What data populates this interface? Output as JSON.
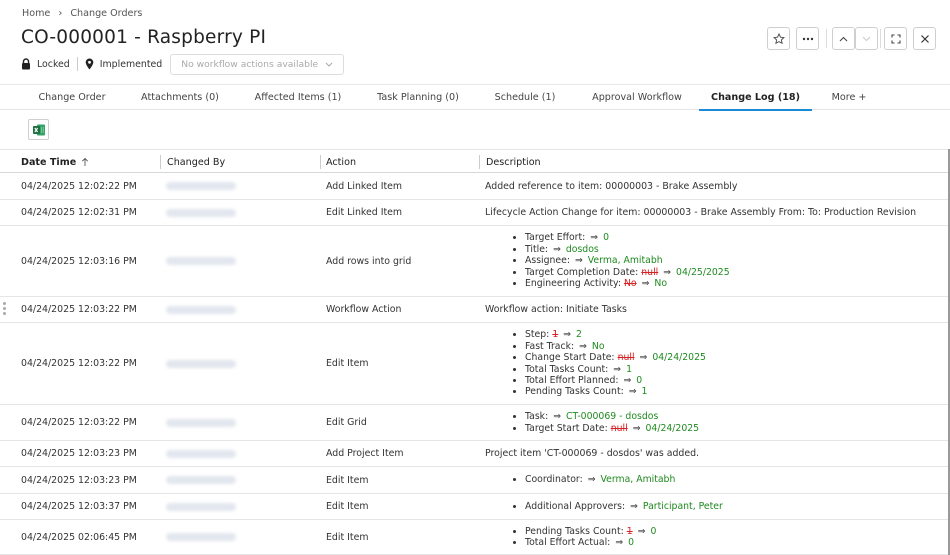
{
  "breadcrumb": {
    "home": "Home",
    "parent": "Change Orders"
  },
  "title": "CO-000001 - Raspberry PI",
  "status": {
    "lock_label": "Locked",
    "state_label": "Implemented",
    "workflow_placeholder": "No workflow actions available"
  },
  "tabs": [
    {
      "label": "Change Order"
    },
    {
      "label": "Attachments (0)"
    },
    {
      "label": "Affected Items (1)"
    },
    {
      "label": "Task Planning (0)"
    },
    {
      "label": "Schedule (1)"
    },
    {
      "label": "Approval Workflow"
    },
    {
      "label": "Change Log (18)"
    },
    {
      "label": "More +"
    }
  ],
  "columns": {
    "date": "Date Time",
    "changed_by": "Changed By",
    "action": "Action",
    "description": "Description"
  },
  "rows": [
    {
      "date": "04/24/2025 12:02:22 PM",
      "action": "Add Linked Item",
      "description": "Added reference to item: 00000003 - Brake Assembly"
    },
    {
      "date": "04/24/2025 12:02:31 PM",
      "action": "Edit Linked Item",
      "description": "Lifecycle Action Change for item: 00000003 - Brake Assembly From: To: Production Revision"
    },
    {
      "date": "04/24/2025 12:03:16 PM",
      "action": "Add rows into grid",
      "changes": [
        {
          "field": "Target Effort:",
          "old": "",
          "new": "0"
        },
        {
          "field": "Title:",
          "old": "",
          "new": "dosdos"
        },
        {
          "field": "Assignee:",
          "old": "",
          "new": "Verma, Amitabh"
        },
        {
          "field": "Target Completion Date:",
          "old": "null",
          "new": "04/25/2025"
        },
        {
          "field": "Engineering Activity:",
          "old": "No",
          "new": "No"
        }
      ]
    },
    {
      "date": "04/24/2025 12:03:22 PM",
      "action": "Workflow Action",
      "description": "Workflow action: Initiate Tasks"
    },
    {
      "date": "04/24/2025 12:03:22 PM",
      "action": "Edit Item",
      "changes": [
        {
          "field": "Step:",
          "old": "1",
          "new": "2"
        },
        {
          "field": "Fast Track:",
          "old": "",
          "new": "No"
        },
        {
          "field": "Change Start Date:",
          "old": "null",
          "new": "04/24/2025"
        },
        {
          "field": "Total Tasks Count:",
          "old": "",
          "new": "1"
        },
        {
          "field": "Total Effort Planned:",
          "old": "",
          "new": "0"
        },
        {
          "field": "Pending Tasks Count:",
          "old": "",
          "new": "1"
        }
      ]
    },
    {
      "date": "04/24/2025 12:03:22 PM",
      "action": "Edit Grid",
      "changes": [
        {
          "field": "Task:",
          "old": "",
          "new": "CT-000069 - dosdos"
        },
        {
          "field": "Target Start Date:",
          "old": "null",
          "new": "04/24/2025"
        }
      ]
    },
    {
      "date": "04/24/2025 12:03:23 PM",
      "action": "Add Project Item",
      "description": "Project item 'CT-000069 - dosdos' was added."
    },
    {
      "date": "04/24/2025 12:03:23 PM",
      "action": "Edit Item",
      "changes": [
        {
          "field": "Coordinator:",
          "old": "",
          "new": "Verma, Amitabh"
        }
      ]
    },
    {
      "date": "04/24/2025 12:03:37 PM",
      "action": "Edit Item",
      "changes": [
        {
          "field": "Additional Approvers:",
          "old": "",
          "new": "Participant, Peter"
        }
      ]
    },
    {
      "date": "04/24/2025 02:06:45 PM",
      "action": "Edit Item",
      "changes": [
        {
          "field": "Pending Tasks Count:",
          "old": "1",
          "new": "0"
        },
        {
          "field": "Total Effort Actual:",
          "old": "",
          "new": "0"
        }
      ]
    }
  ],
  "arrow_glyph": "⇒"
}
